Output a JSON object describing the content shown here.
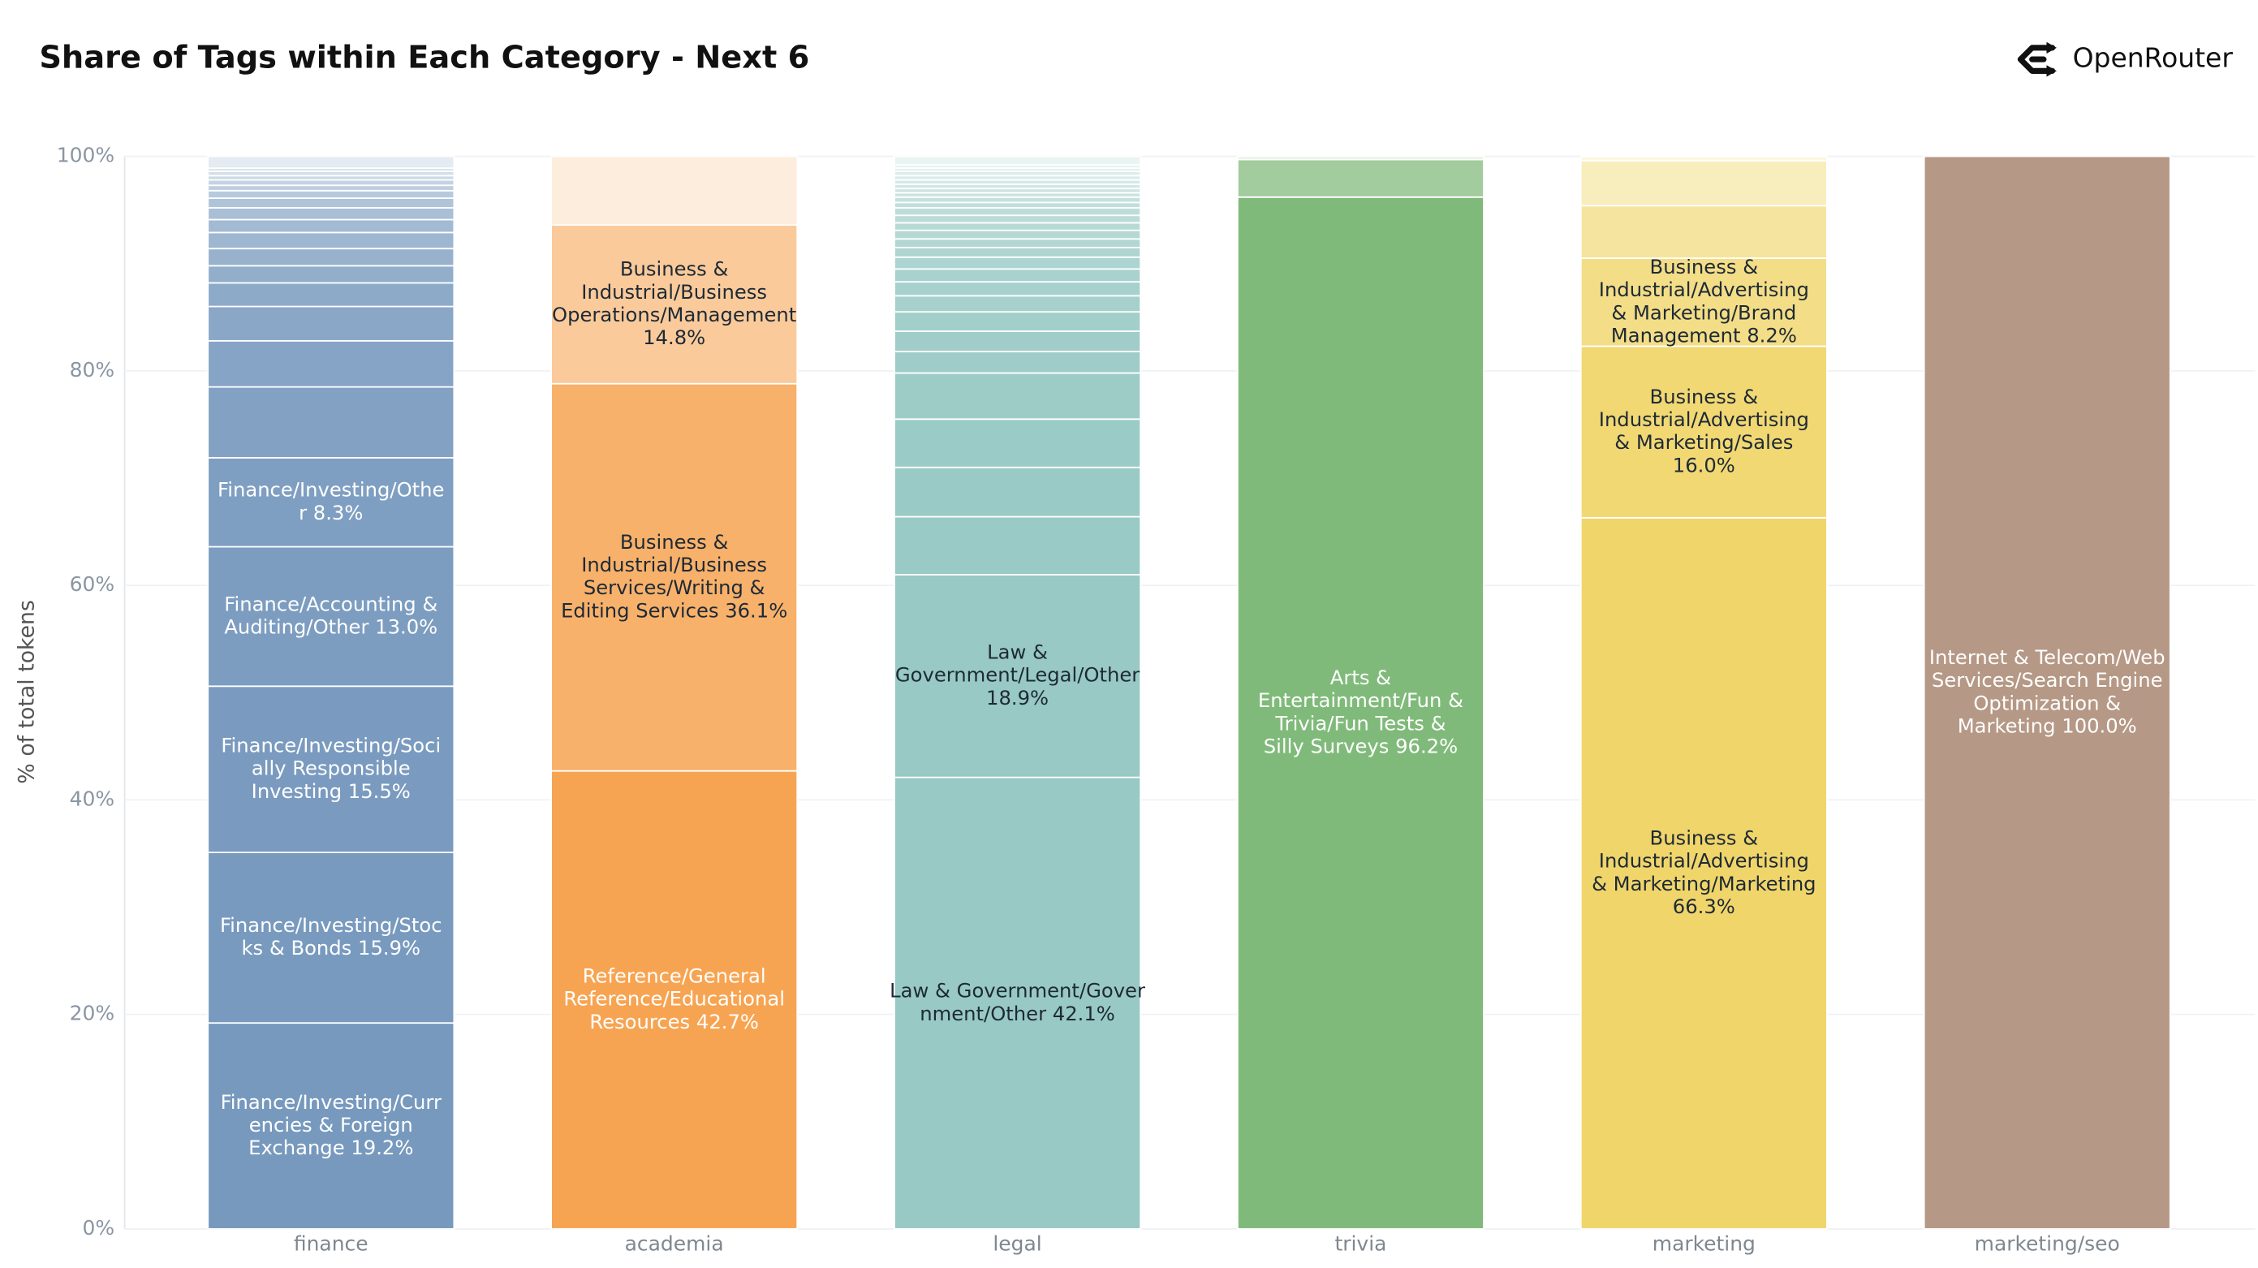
{
  "brand": "OpenRouter",
  "chart_data": {
    "type": "stacked_bar",
    "title": "Share of Tags within Each Category - Next 6",
    "y_label": "% of total tokens",
    "ylim": [
      0,
      100
    ],
    "yticks": [
      {
        "value": 0,
        "label": "0%"
      },
      {
        "value": 20,
        "label": "20%"
      },
      {
        "value": 40,
        "label": "40%"
      },
      {
        "value": 60,
        "label": "60%"
      },
      {
        "value": 80,
        "label": "80%"
      },
      {
        "value": 100,
        "label": "100%"
      }
    ],
    "grid": true,
    "categories": [
      "finance",
      "academia",
      "legal",
      "trivia",
      "marketing",
      "marketing/seo"
    ],
    "stacks": [
      {
        "color": "#7799be",
        "segments": [
          {
            "value": 19.2,
            "label": "Finance/Investing/Currencies & Foreign Exchange 19.2%"
          },
          {
            "value": 15.9,
            "label": "Finance/Investing/Stocks & Bonds 15.9%"
          },
          {
            "value": 15.5,
            "label": "Finance/Investing/Socially Responsible Investing 15.5%"
          },
          {
            "value": 13.0,
            "label": "Finance/Accounting & Auditing/Other 13.0%"
          },
          {
            "value": 8.3,
            "label": "Finance/Investing/Other 8.3%"
          },
          {
            "value": 6.6
          },
          {
            "value": 4.3
          },
          {
            "value": 3.2
          },
          {
            "value": 2.2
          },
          {
            "value": 1.6
          },
          {
            "value": 1.6
          },
          {
            "value": 1.5
          },
          {
            "value": 1.2
          },
          {
            "value": 1.1
          },
          {
            "value": 0.9
          },
          {
            "value": 0.7
          },
          {
            "value": 0.5
          },
          {
            "value": 0.5
          },
          {
            "value": 0.4
          },
          {
            "value": 0.4
          },
          {
            "value": 0.3
          },
          {
            "value": 1.1
          }
        ]
      },
      {
        "color": "#f7a452",
        "segments": [
          {
            "value": 42.7,
            "label": "Reference/General Reference/Educational Resources 42.7%"
          },
          {
            "value": 36.1,
            "label": "Business & Industrial/Business Services/Writing & Editing Services 36.1%"
          },
          {
            "value": 14.8,
            "label": "Business & Industrial/Business Operations/Management 14.8%"
          },
          {
            "value": 6.4
          }
        ]
      },
      {
        "color": "#98c9c4",
        "segments": [
          {
            "value": 42.1,
            "label": "Law & Government/Government/Other 42.1%"
          },
          {
            "value": 18.9,
            "label": "Law & Government/Legal/Other 18.9%"
          },
          {
            "value": 5.4
          },
          {
            "value": 4.6
          },
          {
            "value": 4.5
          },
          {
            "value": 4.3
          },
          {
            "value": 2.0
          },
          {
            "value": 1.9
          },
          {
            "value": 1.8
          },
          {
            "value": 1.5
          },
          {
            "value": 1.3
          },
          {
            "value": 1.2
          },
          {
            "value": 1.1
          },
          {
            "value": 0.9
          },
          {
            "value": 0.8
          },
          {
            "value": 0.8
          },
          {
            "value": 0.7
          },
          {
            "value": 0.7
          },
          {
            "value": 0.7
          },
          {
            "value": 0.5
          },
          {
            "value": 0.5
          },
          {
            "value": 0.4
          },
          {
            "value": 0.4
          },
          {
            "value": 0.4
          },
          {
            "value": 0.4
          },
          {
            "value": 0.4
          },
          {
            "value": 0.4
          },
          {
            "value": 0.3
          },
          {
            "value": 0.3
          },
          {
            "value": 0.8
          }
        ]
      },
      {
        "color": "#80ba7a",
        "segments": [
          {
            "value": 96.2,
            "label": "Arts & Entertainment/Fun & Trivia/Fun Tests & Silly Surveys 96.2%"
          },
          {
            "value": 3.5
          },
          {
            "value": 0.3
          }
        ]
      },
      {
        "color": "#f0d56a",
        "segments": [
          {
            "value": 66.3,
            "label": "Business & Industrial/Advertising & Marketing/Marketing 66.3%"
          },
          {
            "value": 16.0,
            "label": "Business & Industrial/Advertising & Marketing/Sales 16.0%"
          },
          {
            "value": 8.2,
            "label": "Business & Industrial/Advertising & Marketing/Brand Management 8.2%"
          },
          {
            "value": 4.9
          },
          {
            "value": 4.2
          },
          {
            "value": 0.4
          }
        ]
      },
      {
        "color": "#b59885",
        "segments": [
          {
            "value": 100.0,
            "label": "Internet & Telecom/Web Services/Search Engine Optimization & Marketing 100.0%"
          }
        ]
      }
    ]
  }
}
